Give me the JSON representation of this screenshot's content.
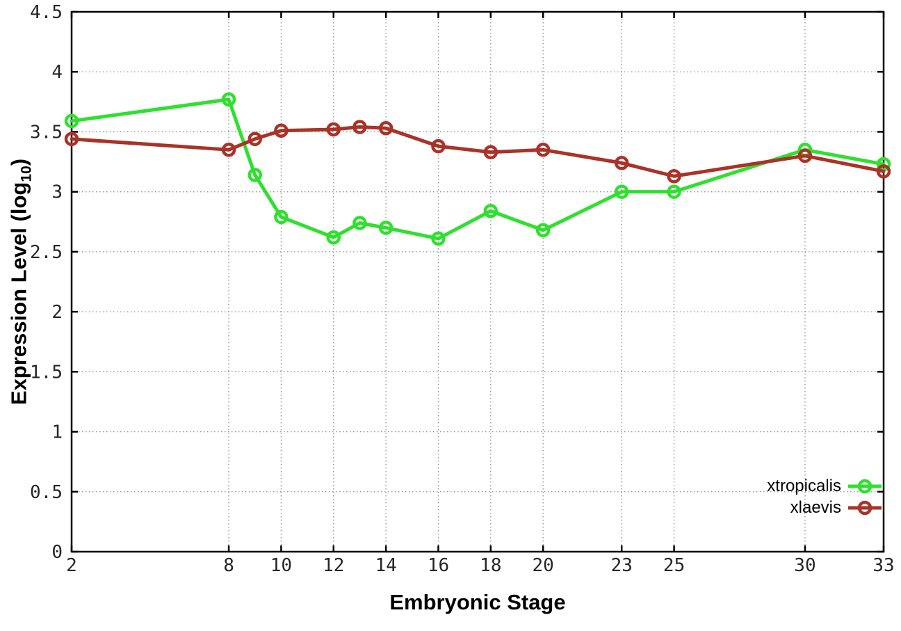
{
  "chart_data": {
    "type": "line",
    "title": "",
    "xlabel": "Embryonic Stage",
    "ylabel": "Expression Level (log10)",
    "ylabel_parts": {
      "prefix": "Expression Level (log",
      "sub": "10",
      "suffix": ")"
    },
    "xlim": [
      2,
      33
    ],
    "ylim": [
      0,
      4.5
    ],
    "x_ticks": [
      2,
      8,
      10,
      12,
      14,
      16,
      18,
      20,
      23,
      25,
      30,
      33
    ],
    "x_tick_labels": [
      "2",
      "8",
      "10",
      "12",
      "14",
      "16",
      "18",
      "20",
      "23",
      "25",
      "30",
      "33"
    ],
    "y_ticks": [
      0,
      0.5,
      1,
      1.5,
      2,
      2.5,
      3,
      3.5,
      4,
      4.5
    ],
    "y_tick_labels": [
      "0",
      "0.5",
      "1",
      "1.5",
      "2",
      "2.5",
      "3",
      "3.5",
      "4",
      "4.5"
    ],
    "grid": true,
    "legend_position": "lower-right",
    "x": [
      2,
      8,
      9,
      10,
      12,
      13,
      14,
      16,
      18,
      20,
      23,
      25,
      30,
      33
    ],
    "series": [
      {
        "name": "xtropicalis",
        "color": "#2fe02f",
        "values": [
          3.59,
          3.77,
          3.14,
          2.79,
          2.62,
          2.74,
          2.7,
          2.61,
          2.84,
          2.68,
          3.0,
          3.0,
          3.35,
          3.23
        ]
      },
      {
        "name": "xlaevis",
        "color": "#a93328",
        "values": [
          3.44,
          3.35,
          3.44,
          3.51,
          3.52,
          3.54,
          3.53,
          3.38,
          3.33,
          3.35,
          3.24,
          3.13,
          3.3,
          3.17
        ]
      }
    ],
    "style": {
      "border_color": "#000000",
      "grid_color": "#8c8c8c",
      "tick_color": "#262626",
      "line_width": 5,
      "marker_radius": 8,
      "marker_stroke": 4.5
    }
  }
}
